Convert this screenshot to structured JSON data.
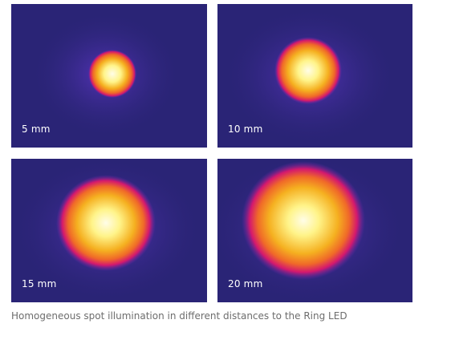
{
  "panels": [
    {
      "label": "5 mm",
      "spot_size": 0.22
    },
    {
      "label": "10 mm",
      "spot_size": 0.32
    },
    {
      "label": "15 mm",
      "spot_size": 0.46
    },
    {
      "label": "20 mm",
      "spot_size": 0.56
    }
  ],
  "caption": "Homogeneous spot illumination in different distances to the Ring LED",
  "colors": {
    "background": "#2a2476",
    "halo": "#4b2ca8",
    "edge": "#d4186e",
    "warm": "#f5a010",
    "bright": "#fff48a",
    "core": "#fffde8"
  }
}
